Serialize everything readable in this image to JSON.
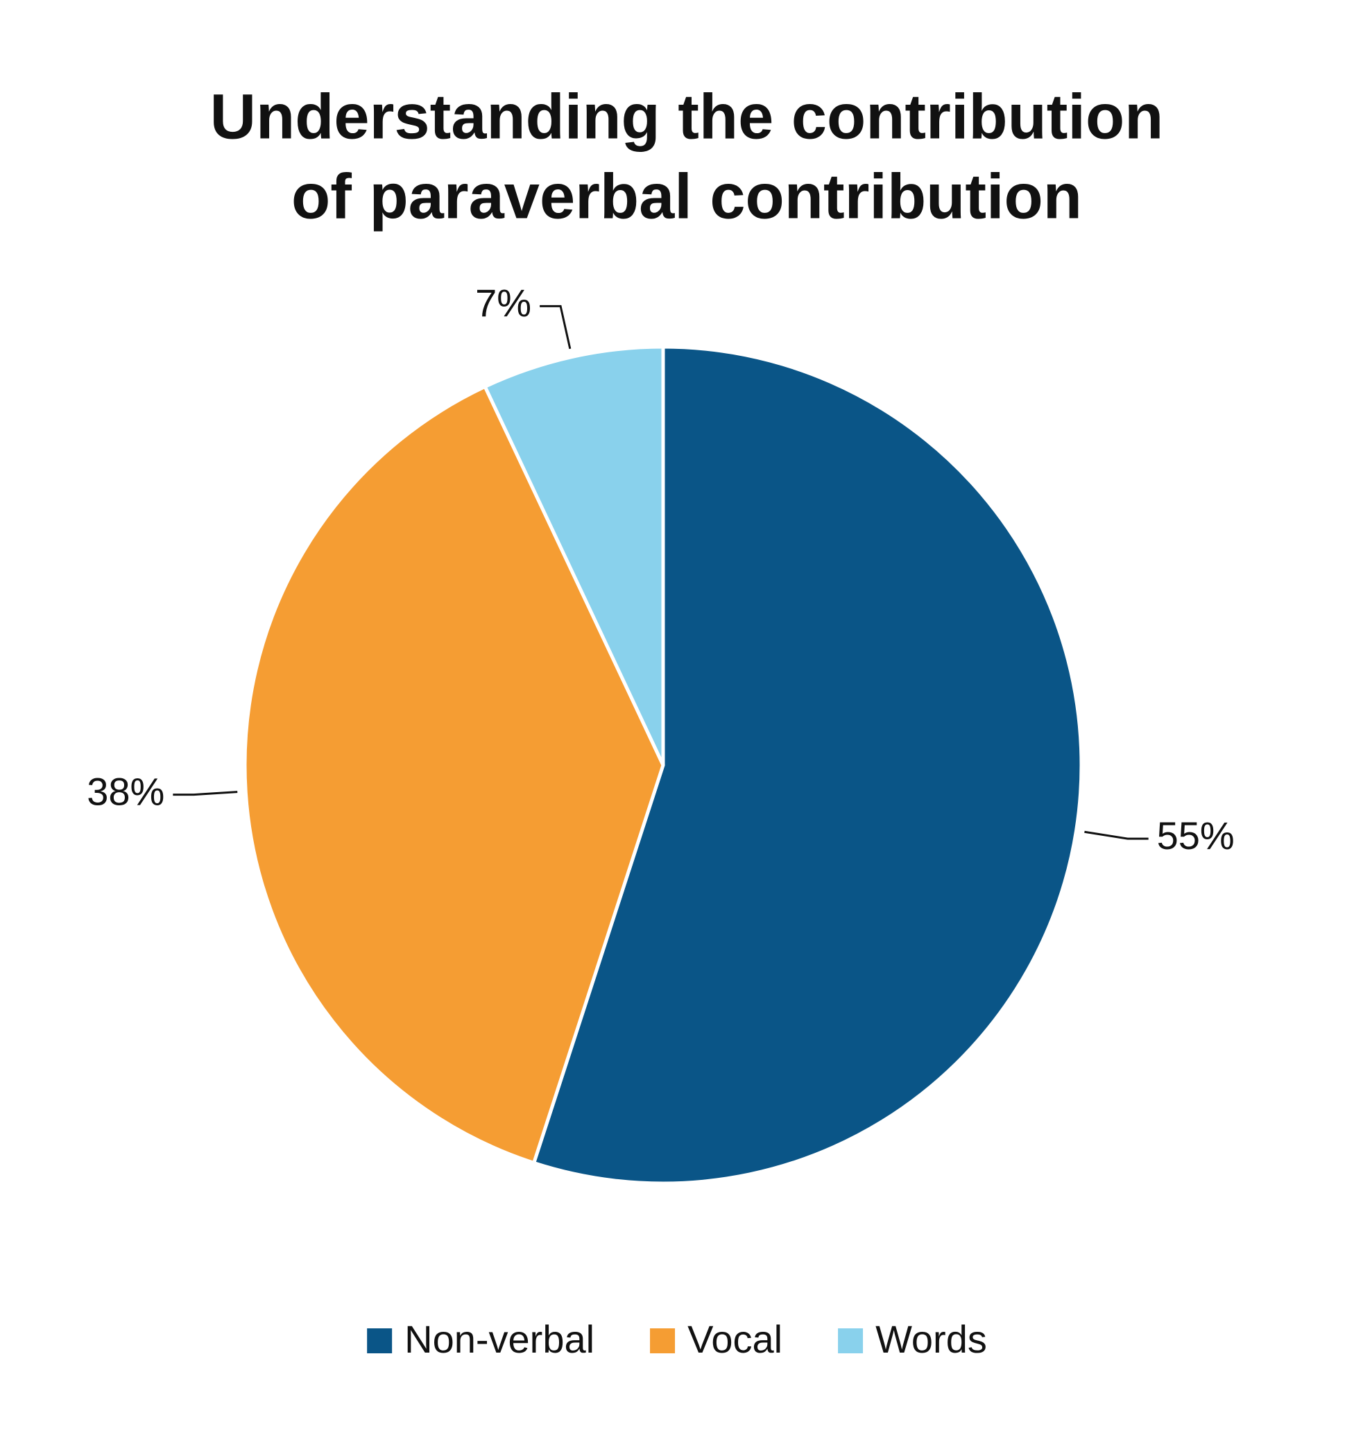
{
  "chart_data": {
    "type": "pie",
    "title": [
      "Understanding the contribution",
      "of paraverbal contribution"
    ],
    "categories": [
      "Non-verbal",
      "Vocal",
      "Words"
    ],
    "values": [
      55,
      38,
      7
    ],
    "value_labels": [
      "55%",
      "38%",
      "7%"
    ],
    "colors": [
      "#0a5587",
      "#f59d33",
      "#89d1ec"
    ],
    "legend": "bottom"
  }
}
